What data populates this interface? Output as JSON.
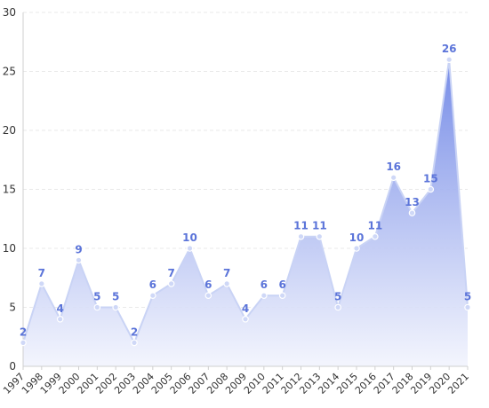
{
  "chart_data": {
    "type": "area",
    "categories": [
      "1997",
      "1998",
      "1999",
      "2000",
      "2001",
      "2002",
      "2003",
      "2004",
      "2005",
      "2006",
      "2007",
      "2008",
      "2009",
      "2010",
      "2011",
      "2012",
      "2013",
      "2014",
      "2015",
      "2016",
      "2017",
      "2018",
      "2019",
      "2020",
      "2021"
    ],
    "values": [
      2,
      7,
      4,
      9,
      5,
      5,
      2,
      6,
      7,
      10,
      6,
      7,
      4,
      6,
      6,
      11,
      11,
      5,
      10,
      11,
      16,
      13,
      15,
      26,
      5
    ],
    "ylim": [
      0,
      30
    ],
    "yticks": [
      0,
      5,
      10,
      15,
      20,
      25,
      30
    ],
    "grid": true,
    "colors": {
      "line": "#c9d3f5",
      "fill_top": "#6f86e6",
      "fill_bottom": "#f2f4fd",
      "label": "#5b74d9",
      "marker_fill": "#cfd8f7",
      "marker_stroke": "#ffffff"
    }
  }
}
